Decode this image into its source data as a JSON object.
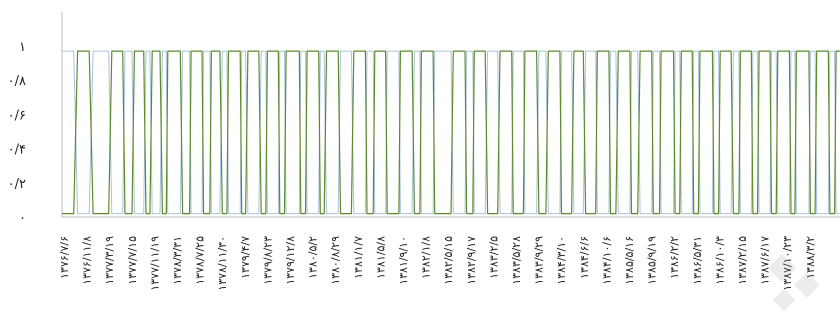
{
  "chart_data": {
    "type": "line",
    "title": "",
    "xlabel": "",
    "ylabel": "",
    "ylim": [
      0,
      1
    ],
    "grid": false,
    "legend": "none",
    "y_ticks": [
      {
        "value": 0,
        "label": "۰"
      },
      {
        "value": 0.2,
        "label": "۰/۲"
      },
      {
        "value": 0.4,
        "label": "۰/۴"
      },
      {
        "value": 0.6,
        "label": "۰/۶"
      },
      {
        "value": 0.8,
        "label": "۰/۸"
      },
      {
        "value": 1,
        "label": "۱"
      }
    ],
    "x_tick_labels": [
      "۱۳۷۶/۷/۶",
      "۱۳۷۶/۱۱/۸",
      "۱۳۷۷/۳/۱۹",
      "۱۳۷۷/۷/۱۵",
      "۱۳۷۷/۱۱/۱۹",
      "۱۳۷۸/۳/۳۱",
      "۱۳۷۸/۷/۲۵",
      "۱۳۷۸/۱۱/۳۰",
      "۱۳۷۹/۴/۷",
      "۱۳۷۹/۸/۲۳",
      "۱۳۷۹/۱۲/۸",
      "۱۳۸۰/۵/۲",
      "۱۳۸۰/۸/۲۹",
      "۱۳۸۱/۱/۷",
      "۱۳۸۱/۵/۸",
      "۱۳۸۱/۹/۱۰",
      "۱۳۸۲/۱/۸",
      "۱۳۸۲/۵/۱۵",
      "۱۳۸۲/۹/۱۷",
      "۱۳۸۳/۲/۵",
      "۱۳۸۳/۵/۲۸",
      "۱۳۸۳/۹/۲۹",
      "۱۳۸۴/۳/۱۰",
      "۱۳۸۴/۶/۶",
      "۱۳۸۴/۱۰/۶",
      "۱۳۸۵/۵/۱۶",
      "۱۳۸۵/۹/۱۹",
      "۱۳۸۶/۲/۲",
      "۱۳۸۶/۵/۳۱",
      "۱۳۸۶/۱۰/۳",
      "۱۳۸۷/۲/۱۵",
      "۱۳۸۷/۶/۱۷",
      "۱۳۸۷/۱۰/۲۳",
      "۱۳۸۸/۳/۲"
    ],
    "series": [
      {
        "color": "#5e8a2e",
        "segments": [
          [
            0,
            0.02
          ],
          [
            1.5,
            0.02
          ],
          [
            2,
            0.97
          ],
          [
            3.5,
            0.97
          ],
          [
            4,
            0.02
          ],
          [
            6,
            0.02
          ],
          [
            6.4,
            0.97
          ],
          [
            7.8,
            0.97
          ],
          [
            8.1,
            0.02
          ],
          [
            9,
            0.02
          ],
          [
            9.3,
            0.97
          ],
          [
            10.5,
            0.97
          ],
          [
            10.8,
            0.02
          ],
          [
            11.3,
            0.02
          ],
          [
            11.6,
            0.97
          ],
          [
            12.6,
            0.97
          ],
          [
            12.9,
            0.02
          ],
          [
            13.4,
            0.02
          ],
          [
            13.6,
            0.97
          ],
          [
            15.2,
            0.97
          ],
          [
            15.5,
            0.02
          ],
          [
            16.4,
            0.02
          ],
          [
            16.6,
            0.97
          ],
          [
            18,
            0.97
          ],
          [
            18.2,
            0.02
          ],
          [
            19,
            0.02
          ],
          [
            19.2,
            0.97
          ],
          [
            20.3,
            0.97
          ],
          [
            20.6,
            0.02
          ],
          [
            21.2,
            0.02
          ],
          [
            21.4,
            0.97
          ],
          [
            22.9,
            0.97
          ],
          [
            23.1,
            0.02
          ],
          [
            23.6,
            0.02
          ],
          [
            23.9,
            0.97
          ],
          [
            25.3,
            0.97
          ],
          [
            25.6,
            0.02
          ],
          [
            26.2,
            0.02
          ],
          [
            26.4,
            0.97
          ],
          [
            27.8,
            0.97
          ],
          [
            28,
            0.02
          ],
          [
            28.6,
            0.02
          ],
          [
            28.8,
            0.97
          ],
          [
            30.5,
            0.97
          ],
          [
            30.7,
            0.02
          ],
          [
            31.3,
            0.02
          ],
          [
            31.5,
            0.97
          ],
          [
            33,
            0.97
          ],
          [
            33.2,
            0.02
          ],
          [
            33.7,
            0.02
          ],
          [
            34,
            0.97
          ],
          [
            35.5,
            0.97
          ],
          [
            35.8,
            0.02
          ],
          [
            37.2,
            0.02
          ],
          [
            37.5,
            0.97
          ],
          [
            39,
            0.97
          ],
          [
            39.2,
            0.02
          ],
          [
            40,
            0.02
          ],
          [
            40.2,
            0.97
          ],
          [
            41.6,
            0.97
          ],
          [
            41.8,
            0.02
          ],
          [
            43.3,
            0.02
          ],
          [
            43.5,
            0.97
          ],
          [
            45,
            0.97
          ],
          [
            45.3,
            0.02
          ],
          [
            46,
            0.02
          ],
          [
            46.2,
            0.97
          ],
          [
            47.7,
            0.97
          ],
          [
            47.9,
            0.02
          ],
          [
            50,
            0.02
          ],
          [
            50.3,
            0.97
          ],
          [
            51.8,
            0.97
          ],
          [
            52,
            0.02
          ],
          [
            52.8,
            0.02
          ],
          [
            53,
            0.97
          ],
          [
            54.4,
            0.97
          ],
          [
            54.7,
            0.02
          ],
          [
            56,
            0.02
          ],
          [
            56.3,
            0.97
          ],
          [
            57.8,
            0.97
          ],
          [
            58,
            0.02
          ],
          [
            59.3,
            0.02
          ],
          [
            59.5,
            0.97
          ],
          [
            61,
            0.97
          ],
          [
            61.3,
            0.02
          ],
          [
            62.2,
            0.02
          ],
          [
            62.5,
            0.97
          ],
          [
            64,
            0.97
          ],
          [
            64.2,
            0.02
          ],
          [
            65.5,
            0.02
          ],
          [
            65.8,
            0.97
          ],
          [
            67,
            0.97
          ],
          [
            67.3,
            0.02
          ],
          [
            68.6,
            0.02
          ],
          [
            68.8,
            0.97
          ],
          [
            70.3,
            0.97
          ],
          [
            70.5,
            0.02
          ],
          [
            71.2,
            0.02
          ],
          [
            71.5,
            0.97
          ],
          [
            73,
            0.97
          ],
          [
            73.2,
            0.02
          ],
          [
            74,
            0.02
          ],
          [
            74.3,
            0.97
          ],
          [
            75.8,
            0.97
          ],
          [
            76,
            0.02
          ],
          [
            76.8,
            0.02
          ],
          [
            77,
            0.97
          ],
          [
            78.6,
            0.97
          ],
          [
            78.8,
            0.02
          ],
          [
            79.4,
            0.02
          ],
          [
            79.6,
            0.97
          ],
          [
            81,
            0.97
          ],
          [
            81.2,
            0.02
          ],
          [
            81.8,
            0.02
          ],
          [
            82,
            0.97
          ],
          [
            83.6,
            0.97
          ],
          [
            83.8,
            0.02
          ],
          [
            84.4,
            0.02
          ],
          [
            84.6,
            0.97
          ],
          [
            86,
            0.97
          ],
          [
            86.3,
            0.02
          ],
          [
            87,
            0.02
          ],
          [
            87.2,
            0.97
          ],
          [
            88.6,
            0.97
          ],
          [
            88.8,
            0.02
          ],
          [
            89.4,
            0.02
          ],
          [
            89.6,
            0.97
          ],
          [
            91,
            0.97
          ],
          [
            91.2,
            0.02
          ],
          [
            91.8,
            0.02
          ],
          [
            92,
            0.97
          ],
          [
            93.5,
            0.97
          ],
          [
            93.7,
            0.02
          ],
          [
            94.2,
            0.02
          ],
          [
            94.4,
            0.97
          ],
          [
            96,
            0.97
          ],
          [
            96.2,
            0.02
          ],
          [
            96.8,
            0.02
          ],
          [
            97,
            0.97
          ],
          [
            98.5,
            0.97
          ],
          [
            98.7,
            0.02
          ],
          [
            99.3,
            0.02
          ],
          [
            99.5,
            0.97
          ],
          [
            100,
            0.97
          ]
        ]
      },
      {
        "color": "#a9c2e0",
        "segments": [
          [
            0,
            0.97
          ],
          [
            1.5,
            0.97
          ],
          [
            2,
            0.02
          ],
          [
            3.5,
            0.02
          ],
          [
            4,
            0.97
          ],
          [
            6,
            0.97
          ],
          [
            6.4,
            0.02
          ],
          [
            7.8,
            0.02
          ],
          [
            8.1,
            0.97
          ],
          [
            9,
            0.97
          ],
          [
            9.3,
            0.02
          ],
          [
            10.5,
            0.02
          ],
          [
            10.8,
            0.97
          ],
          [
            11.3,
            0.97
          ],
          [
            11.6,
            0.02
          ],
          [
            12.6,
            0.02
          ],
          [
            12.9,
            0.97
          ],
          [
            13.4,
            0.97
          ],
          [
            13.6,
            0.02
          ],
          [
            15.2,
            0.02
          ],
          [
            15.5,
            0.97
          ],
          [
            16.4,
            0.97
          ],
          [
            16.6,
            0.02
          ],
          [
            18,
            0.02
          ],
          [
            18.2,
            0.97
          ],
          [
            19,
            0.97
          ],
          [
            19.2,
            0.02
          ],
          [
            20.3,
            0.02
          ],
          [
            20.6,
            0.97
          ],
          [
            21.2,
            0.97
          ],
          [
            21.4,
            0.02
          ],
          [
            22.9,
            0.02
          ],
          [
            23.1,
            0.97
          ],
          [
            23.6,
            0.97
          ],
          [
            23.9,
            0.02
          ],
          [
            25.3,
            0.02
          ],
          [
            25.6,
            0.97
          ],
          [
            26.2,
            0.97
          ],
          [
            26.4,
            0.02
          ],
          [
            27.8,
            0.02
          ],
          [
            28,
            0.97
          ],
          [
            28.6,
            0.97
          ],
          [
            28.8,
            0.02
          ],
          [
            30.5,
            0.02
          ],
          [
            30.7,
            0.97
          ],
          [
            31.3,
            0.97
          ],
          [
            31.5,
            0.02
          ],
          [
            33,
            0.02
          ],
          [
            33.2,
            0.97
          ],
          [
            33.7,
            0.97
          ],
          [
            34,
            0.02
          ],
          [
            35.5,
            0.02
          ],
          [
            35.8,
            0.97
          ],
          [
            37.2,
            0.97
          ],
          [
            37.5,
            0.02
          ],
          [
            39,
            0.02
          ],
          [
            39.2,
            0.97
          ],
          [
            40,
            0.97
          ],
          [
            40.2,
            0.02
          ],
          [
            41.6,
            0.02
          ],
          [
            41.8,
            0.97
          ],
          [
            43.3,
            0.97
          ],
          [
            43.5,
            0.02
          ],
          [
            45,
            0.02
          ],
          [
            45.3,
            0.97
          ],
          [
            46,
            0.97
          ],
          [
            46.2,
            0.02
          ],
          [
            47.7,
            0.02
          ],
          [
            47.9,
            0.97
          ],
          [
            50,
            0.97
          ],
          [
            50.3,
            0.02
          ],
          [
            51.8,
            0.02
          ],
          [
            52,
            0.97
          ],
          [
            52.8,
            0.97
          ],
          [
            53,
            0.02
          ],
          [
            54.4,
            0.02
          ],
          [
            54.7,
            0.97
          ],
          [
            56,
            0.97
          ],
          [
            56.3,
            0.02
          ],
          [
            57.8,
            0.02
          ],
          [
            58,
            0.97
          ],
          [
            59.3,
            0.97
          ],
          [
            59.5,
            0.02
          ],
          [
            61,
            0.02
          ],
          [
            61.3,
            0.97
          ],
          [
            62.2,
            0.97
          ],
          [
            62.5,
            0.02
          ],
          [
            64,
            0.02
          ],
          [
            64.2,
            0.97
          ],
          [
            65.5,
            0.97
          ],
          [
            65.8,
            0.02
          ],
          [
            67,
            0.02
          ],
          [
            67.3,
            0.97
          ],
          [
            68.6,
            0.97
          ],
          [
            68.8,
            0.02
          ],
          [
            70.3,
            0.02
          ],
          [
            70.5,
            0.97
          ],
          [
            71.2,
            0.97
          ],
          [
            71.5,
            0.02
          ],
          [
            73,
            0.02
          ],
          [
            73.2,
            0.97
          ],
          [
            74,
            0.97
          ],
          [
            74.3,
            0.02
          ],
          [
            75.8,
            0.02
          ],
          [
            76,
            0.97
          ],
          [
            76.8,
            0.97
          ],
          [
            77,
            0.02
          ],
          [
            78.6,
            0.02
          ],
          [
            78.8,
            0.97
          ],
          [
            79.4,
            0.97
          ],
          [
            79.6,
            0.02
          ],
          [
            81,
            0.02
          ],
          [
            81.2,
            0.97
          ],
          [
            81.8,
            0.97
          ],
          [
            82,
            0.02
          ],
          [
            83.6,
            0.02
          ],
          [
            83.8,
            0.97
          ],
          [
            84.4,
            0.97
          ],
          [
            84.6,
            0.02
          ],
          [
            86,
            0.02
          ],
          [
            86.3,
            0.97
          ],
          [
            87,
            0.97
          ],
          [
            87.2,
            0.02
          ],
          [
            88.6,
            0.02
          ],
          [
            88.8,
            0.97
          ],
          [
            89.4,
            0.97
          ],
          [
            89.6,
            0.02
          ],
          [
            91,
            0.02
          ],
          [
            91.2,
            0.97
          ],
          [
            91.8,
            0.97
          ],
          [
            92,
            0.02
          ],
          [
            93.5,
            0.02
          ],
          [
            93.7,
            0.97
          ],
          [
            94.2,
            0.97
          ],
          [
            94.4,
            0.02
          ],
          [
            96,
            0.02
          ],
          [
            96.2,
            0.97
          ],
          [
            96.8,
            0.97
          ],
          [
            97,
            0.02
          ],
          [
            98.5,
            0.02
          ],
          [
            98.7,
            0.97
          ],
          [
            99.3,
            0.97
          ],
          [
            99.5,
            0.02
          ],
          [
            100,
            0.02
          ]
        ]
      }
    ]
  }
}
